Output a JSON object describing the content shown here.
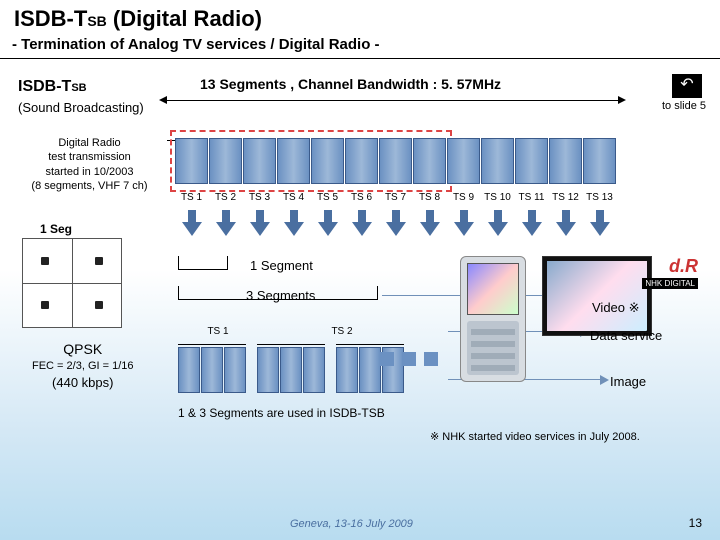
{
  "title_main": "ISDB-T",
  "title_sub": "SB",
  "title_rest": "  (Digital Radio)",
  "subtitle": "- Termination of Analog TV services / Digital Radio -",
  "isdb_label_main": "ISDB-T",
  "isdb_label_sub": "SB",
  "sound_broadcasting": "(Sound Broadcasting)",
  "bandwidth_label": "13 Segments , Channel Bandwidth : 5. 57MHz",
  "to_slide": "to slide 5",
  "test_note": "Digital Radio\ntest transmission\nstarted in 10/2003\n(8 segments, VHF 7 ch)",
  "ts_labels": [
    "TS 1",
    "TS 2",
    "TS 3",
    "TS 4",
    "TS 5",
    "TS 6",
    "TS 7",
    "TS 8",
    "TS 9",
    "TS 10",
    "TS 11",
    "TS 12",
    "TS 13"
  ],
  "one_seg_title": "1 Seg",
  "one_segment": "1 Segment",
  "three_segments": "3 Segments",
  "qpsk_title": "QPSK",
  "qpsk_fec": "FEC = 2/3, GI = 1/16",
  "qpsk_rate": "(440 kbps)",
  "ts1": "TS 1",
  "ts2": "TS 2",
  "used_label": "1 & 3 Segments are used in ISDB-TSB",
  "dr_logo": "d.R",
  "dr_sub": "NHK DIGITAL",
  "video_label": "Video ※",
  "data_label": "Data service",
  "image_label": "Image",
  "footnote": "※  NHK started video services in July 2008.",
  "footer_loc": "Geneva, 13-16 July 2009",
  "footer_page": "13",
  "colors": {
    "segment_fill": "#6b91c2",
    "segment_border": "#3a5a8a",
    "dash_border": "#d44",
    "arrow_fill": "#4a6fa0",
    "bg_grad_top": "#ffffff",
    "bg_grad_bot": "#b8dcf0"
  }
}
